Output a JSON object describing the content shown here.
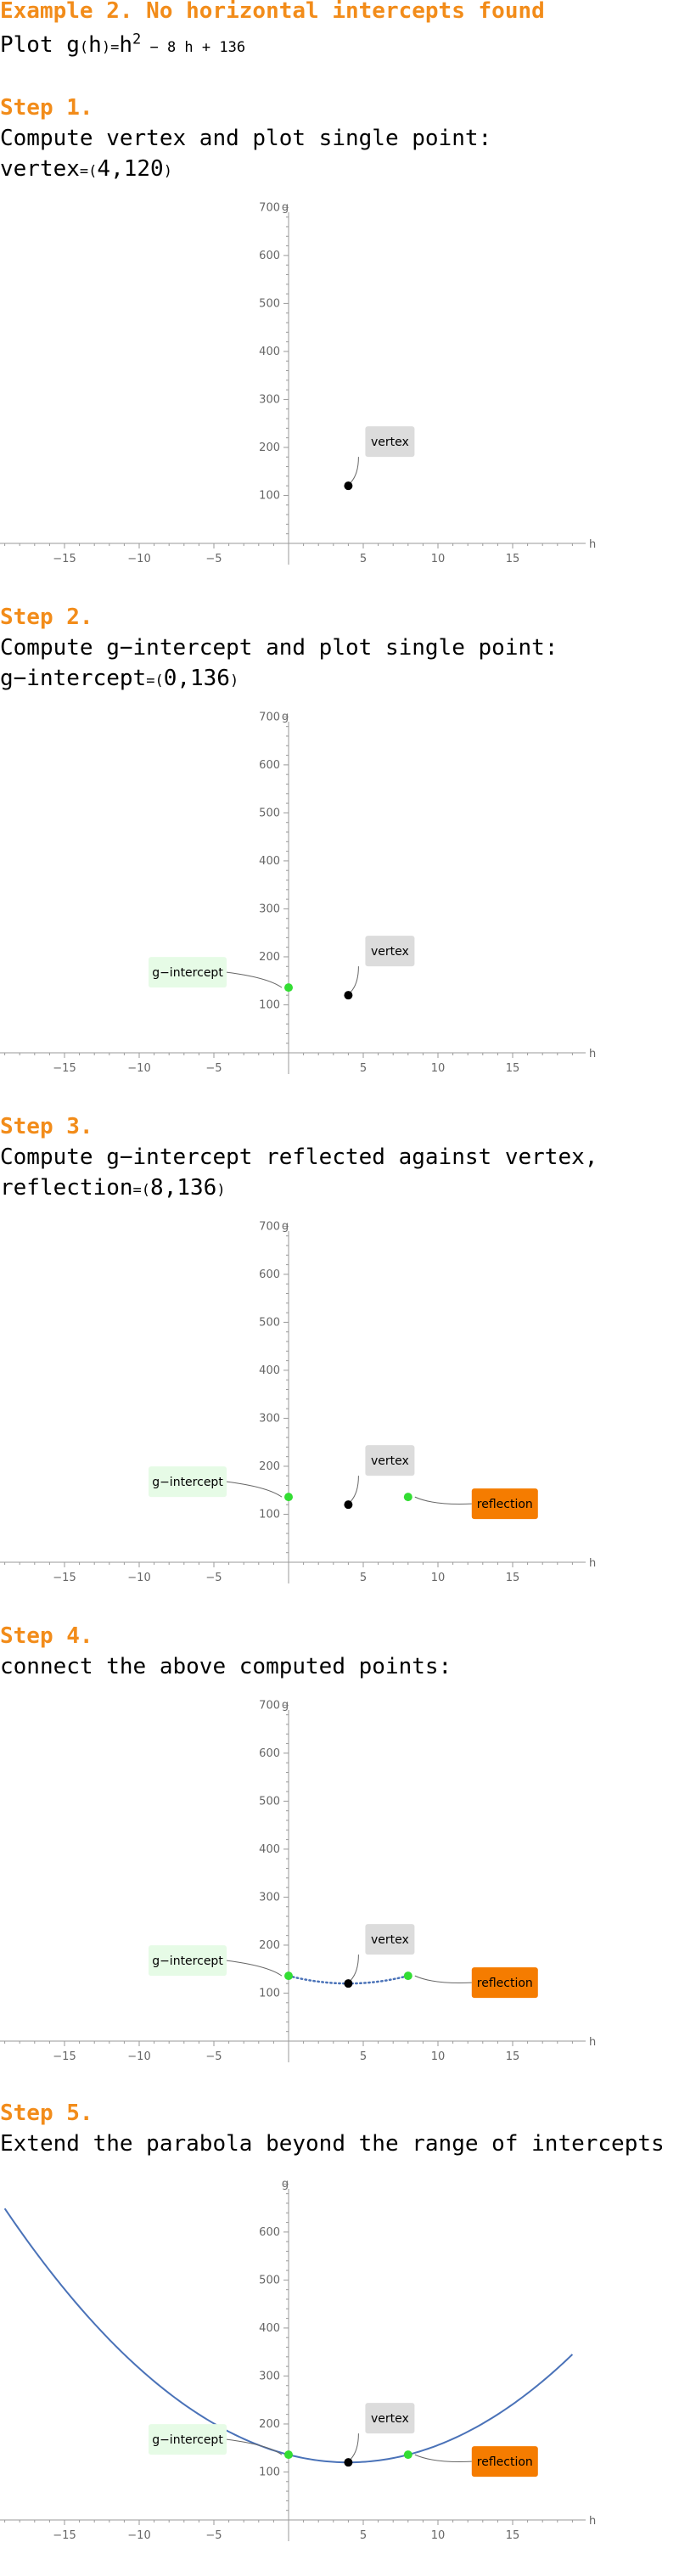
{
  "header": {
    "title": "Example 2. No horizontal intercepts found",
    "plot_prefix": "Plot g",
    "paren_open": "(",
    "var": "h",
    "paren_close": ")",
    "eq": "=",
    "base": "h",
    "exp": "2",
    "rest": " − 8 h + 136"
  },
  "steps": [
    {
      "title": "Step 1.",
      "desc": "Compute vertex and plot single point:",
      "val_name": "vertex",
      "val_eq": "=",
      "val_open": "(",
      "val": "4,120",
      "val_close": ")"
    },
    {
      "title": "Step 2.",
      "desc": "Compute g−intercept and plot single point:",
      "val_name": "g−intercept",
      "val_eq": "=",
      "val_open": "(",
      "val": "0,136",
      "val_close": ")"
    },
    {
      "title": "Step 3.",
      "desc": "Compute g−intercept reflected against vertex,",
      "val_name": "reflection",
      "val_eq": "=",
      "val_open": "(",
      "val": "8,136",
      "val_close": ")"
    },
    {
      "title": "Step 4.",
      "desc": "connect the above computed points:"
    },
    {
      "title": "Step 5.",
      "desc": "Extend the parabola beyond the range of intercepts"
    }
  ],
  "labels": {
    "vertex": "vertex",
    "g_intercept": "g−intercept",
    "reflection": "reflection"
  },
  "colors": {
    "accent": "#f28c1a",
    "vertex_point": "#000000",
    "intercept_point": "#33dd33",
    "curve": "#4a72b8",
    "vertex_label_bg": "#dcdcdc",
    "intercept_label_bg": "#e6fbe6",
    "reflection_label_bg": "#f57c00"
  },
  "chart_data": [
    {
      "type": "scatter",
      "xlabel": "h",
      "ylabel": "g",
      "xlim": [
        -19,
        19
      ],
      "ylim": [
        -60,
        700
      ],
      "x_ticks": [
        -15,
        -10,
        -5,
        5,
        10,
        15
      ],
      "y_ticks": [
        100,
        200,
        300,
        400,
        500,
        600,
        700
      ],
      "points": [
        {
          "name": "vertex",
          "x": 4,
          "y": 120
        }
      ],
      "curve": "none"
    },
    {
      "type": "scatter",
      "xlabel": "h",
      "ylabel": "g",
      "xlim": [
        -19,
        19
      ],
      "ylim": [
        -60,
        700
      ],
      "x_ticks": [
        -15,
        -10,
        -5,
        5,
        10,
        15
      ],
      "y_ticks": [
        100,
        200,
        300,
        400,
        500,
        600,
        700
      ],
      "points": [
        {
          "name": "vertex",
          "x": 4,
          "y": 120
        },
        {
          "name": "g−intercept",
          "x": 0,
          "y": 136
        }
      ],
      "curve": "none"
    },
    {
      "type": "scatter",
      "xlabel": "h",
      "ylabel": "g",
      "xlim": [
        -19,
        19
      ],
      "ylim": [
        -60,
        700
      ],
      "x_ticks": [
        -15,
        -10,
        -5,
        5,
        10,
        15
      ],
      "y_ticks": [
        100,
        200,
        300,
        400,
        500,
        600,
        700
      ],
      "points": [
        {
          "name": "vertex",
          "x": 4,
          "y": 120
        },
        {
          "name": "g−intercept",
          "x": 0,
          "y": 136
        },
        {
          "name": "reflection",
          "x": 8,
          "y": 136
        }
      ],
      "curve": "none"
    },
    {
      "type": "line",
      "xlabel": "h",
      "ylabel": "g",
      "xlim": [
        -19,
        19
      ],
      "ylim": [
        -60,
        700
      ],
      "x_ticks": [
        -15,
        -10,
        -5,
        5,
        10,
        15
      ],
      "y_ticks": [
        100,
        200,
        300,
        400,
        500,
        600,
        700
      ],
      "points": [
        {
          "name": "vertex",
          "x": 4,
          "y": 120
        },
        {
          "name": "g−intercept",
          "x": 0,
          "y": 136
        },
        {
          "name": "reflection",
          "x": 8,
          "y": 136
        }
      ],
      "curve": "dotted",
      "curve_range": [
        0,
        8
      ],
      "function": {
        "a": 1,
        "b": -8,
        "c": 136
      }
    },
    {
      "type": "line",
      "xlabel": "h",
      "ylabel": "g",
      "xlim": [
        -19,
        19
      ],
      "ylim": [
        -60,
        700
      ],
      "x_ticks": [
        -15,
        -10,
        -5,
        5,
        10,
        15
      ],
      "y_ticks": [
        100,
        200,
        300,
        400,
        500,
        600
      ],
      "points": [
        {
          "name": "vertex",
          "x": 4,
          "y": 120
        },
        {
          "name": "g−intercept",
          "x": 0,
          "y": 136
        },
        {
          "name": "reflection",
          "x": 8,
          "y": 136
        }
      ],
      "curve": "solid",
      "curve_range": [
        -19,
        19
      ],
      "function": {
        "a": 1,
        "b": -8,
        "c": 136
      }
    }
  ]
}
